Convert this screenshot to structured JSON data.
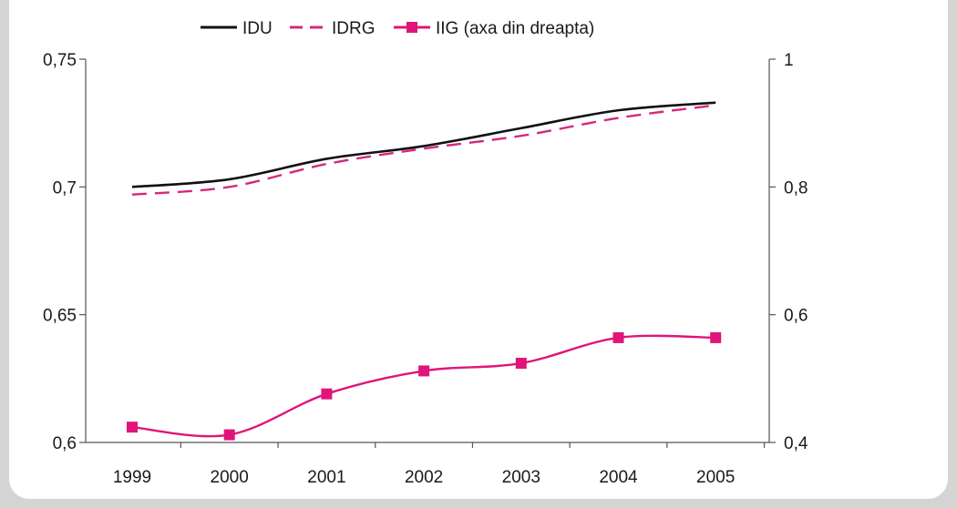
{
  "chart_data": {
    "type": "line",
    "title": "",
    "xlabel": "",
    "ylabel": "",
    "categories": [
      "1999",
      "2000",
      "2001",
      "2002",
      "2003",
      "2004",
      "2005"
    ],
    "y_left": {
      "min": 0.6,
      "max": 0.75,
      "ticks": [
        0.6,
        0.65,
        0.7,
        0.75
      ],
      "tick_labels": [
        "0,6",
        "0,65",
        "0,7",
        "0,75"
      ]
    },
    "y_right": {
      "min": 0.4,
      "max": 1.0,
      "ticks": [
        0.4,
        0.6,
        0.8,
        1.0
      ],
      "tick_labels": [
        "0,4",
        "0,6",
        "0,8",
        "1"
      ]
    },
    "legend_position": "top",
    "grid": false,
    "series": [
      {
        "name": "IDU",
        "axis": "left",
        "style": "solid",
        "color": "#111111",
        "values": [
          0.7,
          0.703,
          0.711,
          0.716,
          0.723,
          0.73,
          0.733
        ]
      },
      {
        "name": "IDRG",
        "axis": "left",
        "style": "dashed",
        "color": "#d6287f",
        "values": [
          0.697,
          0.7,
          0.709,
          0.715,
          0.72,
          0.727,
          0.732
        ]
      },
      {
        "name": "IIG (axa din dreapta)",
        "axis": "right",
        "style": "solid-marker",
        "color": "#e0157a",
        "values": [
          0.424,
          0.412,
          0.476,
          0.512,
          0.524,
          0.564,
          0.564
        ]
      }
    ]
  }
}
